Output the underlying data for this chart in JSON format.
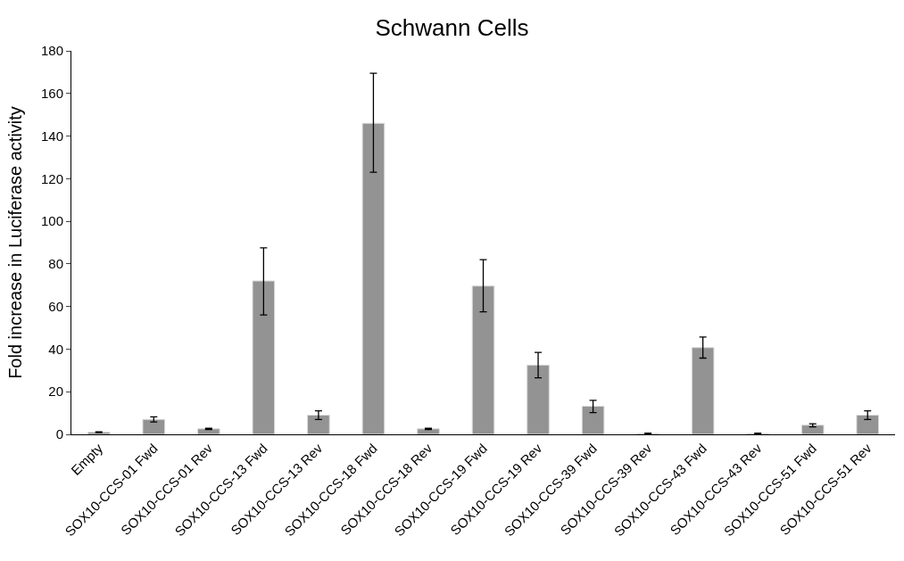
{
  "chart_data": {
    "type": "bar",
    "title": "Schwann Cells",
    "ylabel": "Fold increase in Luciferase activity",
    "categories": [
      "Empty",
      "SOX10-CCS-01 Fwd",
      "SOX10-CCS-01 Rev",
      "SOX10-CCS-13 Fwd",
      "SOX10-CCS-13 Rev",
      "SOX10-CCS-18 Fwd",
      "SOX10-CCS-18 Rev",
      "SOX10-CCS-19 Fwd",
      "SOX10-CCS-19 Rev",
      "SOX10-CCS-39 Fwd",
      "SOX10-CCS-39 Rev",
      "SOX10-CCS-43 Fwd",
      "SOX10-CCS-43 Rev",
      "SOX10-CCS-51 Fwd",
      "SOX10-CCS-51 Rev"
    ],
    "values": [
      1,
      7,
      2.6,
      72,
      9,
      146,
      2.6,
      69.6,
      32.5,
      13.2,
      0.4,
      40.7,
      0.4,
      4.3,
      9
    ],
    "errors": [
      [
        0.8,
        1.2
      ],
      [
        5.8,
        8.2
      ],
      [
        2.3,
        2.9
      ],
      [
        56,
        87.5
      ],
      [
        7,
        11
      ],
      [
        123,
        169.5
      ],
      [
        2.3,
        2.9
      ],
      [
        57.5,
        82
      ],
      [
        26.5,
        38.5
      ],
      [
        10.2,
        16
      ],
      [
        0.2,
        0.6
      ],
      [
        35.8,
        45.7
      ],
      [
        0.2,
        0.6
      ],
      [
        3.5,
        5
      ],
      [
        7,
        11
      ]
    ],
    "color": "#939393",
    "ylim": [
      0,
      180
    ],
    "yticks": [
      0,
      20,
      40,
      60,
      80,
      100,
      120,
      140,
      160,
      180
    ]
  }
}
